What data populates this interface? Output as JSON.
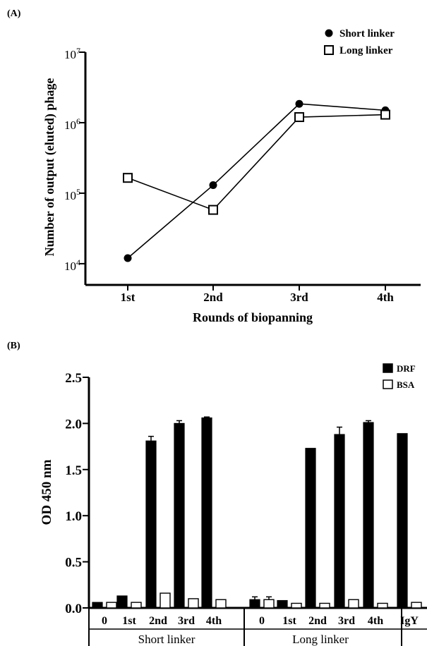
{
  "panel_a": {
    "label": "(A)"
  },
  "panel_b": {
    "label": "(B)"
  },
  "chart_data": [
    {
      "type": "line",
      "title": "",
      "xlabel": "Rounds of biopanning",
      "ylabel": "Number of output (eluted) phage",
      "yscale": "log",
      "ylim": [
        5000,
        10000000
      ],
      "categories": [
        "1st",
        "2nd",
        "3rd",
        "4th"
      ],
      "ytick_labels": [
        {
          "base": "10",
          "exp": "4",
          "value": 10000
        },
        {
          "base": "10",
          "exp": "5",
          "value": 100000
        },
        {
          "base": "10",
          "exp": "6",
          "value": 1000000
        },
        {
          "base": "10",
          "exp": "7",
          "value": 10000000
        }
      ],
      "legend_position": "top-right",
      "series": [
        {
          "name": "Short linker",
          "marker": "filled-circle",
          "values": [
            12000,
            130000,
            1850000,
            1500000
          ]
        },
        {
          "name": "Long linker",
          "marker": "open-square",
          "values": [
            165000,
            58000,
            1200000,
            1300000
          ]
        }
      ]
    },
    {
      "type": "bar",
      "title": "",
      "xlabel": "",
      "ylabel": "OD 450 nm",
      "ylim": [
        0,
        2.5
      ],
      "ytick_labels": [
        "0.0",
        "0.5",
        "1.0",
        "1.5",
        "2.0",
        "2.5"
      ],
      "legend_position": "top-right",
      "colors": {
        "DRF": "#000000",
        "BSA": "#ffffff"
      },
      "groups": [
        {
          "label": "Short linker",
          "categories": [
            "0",
            "1st",
            "2nd",
            "3rd",
            "4th"
          ]
        },
        {
          "label": "Long linker",
          "categories": [
            "0",
            "1st",
            "2nd",
            "3rd",
            "4th"
          ]
        },
        {
          "label": "",
          "categories": [
            "IgY"
          ]
        }
      ],
      "series": [
        {
          "name": "DRF",
          "values": [
            0.06,
            0.13,
            1.81,
            2.0,
            2.06,
            0.09,
            0.08,
            1.73,
            1.88,
            2.01,
            1.89
          ],
          "errors": [
            0,
            0,
            0.05,
            0.03,
            0.01,
            0.03,
            0,
            0,
            0.08,
            0.02,
            0
          ]
        },
        {
          "name": "BSA",
          "values": [
            0.06,
            0.06,
            0.16,
            0.1,
            0.09,
            0.09,
            0.05,
            0.05,
            0.09,
            0.05,
            0.06
          ],
          "errors": [
            0,
            0,
            0,
            0,
            0,
            0.03,
            0,
            0,
            0,
            0,
            0
          ]
        }
      ]
    }
  ]
}
